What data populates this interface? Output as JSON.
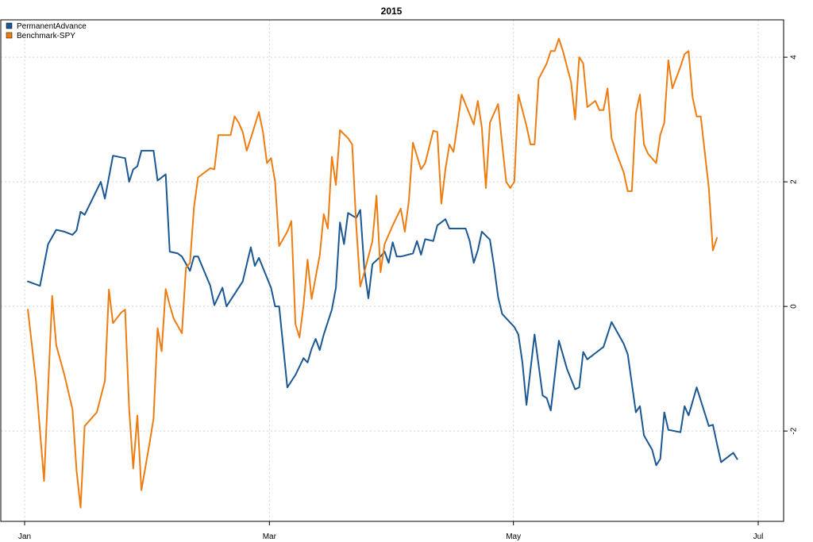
{
  "chart_data": {
    "type": "line",
    "title": "2015",
    "xlabel": "",
    "ylabel": "",
    "x_ticks": [
      "Jan",
      "Mar",
      "May",
      "Jul"
    ],
    "y_ticks": [
      -2,
      0,
      2,
      4
    ],
    "xlim": [
      0,
      180
    ],
    "ylim": [
      -3.45,
      4.6
    ],
    "grid": true,
    "legend_position": "top-left",
    "y_axis_side": "right",
    "series": [
      {
        "name": "PermanentAdvance",
        "color": "#1b5792",
        "points": [
          [
            1,
            0.4
          ],
          [
            4,
            0.33
          ],
          [
            6,
            1.0
          ],
          [
            8,
            1.23
          ],
          [
            10,
            1.2
          ],
          [
            12,
            1.15
          ],
          [
            13,
            1.22
          ],
          [
            14,
            1.52
          ],
          [
            15,
            1.47
          ],
          [
            19,
            2.0
          ],
          [
            20,
            1.73
          ],
          [
            22,
            2.42
          ],
          [
            25,
            2.38
          ],
          [
            26,
            2.0
          ],
          [
            27,
            2.2
          ],
          [
            28,
            2.25
          ],
          [
            29,
            2.5
          ],
          [
            32,
            2.5
          ],
          [
            33,
            2.02
          ],
          [
            35,
            2.12
          ],
          [
            36,
            0.88
          ],
          [
            38,
            0.85
          ],
          [
            39,
            0.8
          ],
          [
            41,
            0.57
          ],
          [
            42,
            0.8
          ],
          [
            43,
            0.8
          ],
          [
            46,
            0.33
          ],
          [
            47,
            0.02
          ],
          [
            49,
            0.3
          ],
          [
            50,
            0.0
          ],
          [
            54,
            0.4
          ],
          [
            56,
            0.95
          ],
          [
            57,
            0.65
          ],
          [
            58,
            0.78
          ],
          [
            61,
            0.3
          ],
          [
            62,
            0.0
          ],
          [
            63,
            0.0
          ],
          [
            65,
            -1.3
          ],
          [
            67,
            -1.1
          ],
          [
            69,
            -0.83
          ],
          [
            70,
            -0.9
          ],
          [
            71,
            -0.68
          ],
          [
            72,
            -0.52
          ],
          [
            73,
            -0.7
          ],
          [
            74,
            -0.45
          ],
          [
            75,
            -0.25
          ],
          [
            76,
            -0.05
          ],
          [
            77,
            0.3
          ],
          [
            78,
            1.35
          ],
          [
            79,
            1.0
          ],
          [
            80,
            1.5
          ],
          [
            82,
            1.42
          ],
          [
            83,
            1.55
          ],
          [
            84,
            0.6
          ],
          [
            85,
            0.13
          ],
          [
            86,
            0.68
          ],
          [
            88,
            0.8
          ],
          [
            89,
            0.88
          ],
          [
            90,
            0.7
          ],
          [
            91,
            1.03
          ],
          [
            92,
            0.8
          ],
          [
            93,
            0.8
          ],
          [
            96,
            0.85
          ],
          [
            97,
            1.05
          ],
          [
            98,
            0.83
          ],
          [
            99,
            1.08
          ],
          [
            101,
            1.05
          ],
          [
            102,
            1.3
          ],
          [
            104,
            1.4
          ],
          [
            105,
            1.25
          ],
          [
            109,
            1.25
          ],
          [
            110,
            1.05
          ],
          [
            111,
            0.7
          ],
          [
            112,
            0.9
          ],
          [
            113,
            1.2
          ],
          [
            115,
            1.07
          ],
          [
            116,
            0.65
          ],
          [
            117,
            0.15
          ],
          [
            118,
            -0.12
          ],
          [
            121,
            -0.33
          ],
          [
            122,
            -0.45
          ],
          [
            123,
            -0.9
          ],
          [
            124,
            -1.58
          ],
          [
            126,
            -0.45
          ],
          [
            128,
            -1.43
          ],
          [
            129,
            -1.47
          ],
          [
            130,
            -1.67
          ],
          [
            132,
            -0.55
          ],
          [
            134,
            -1.0
          ],
          [
            136,
            -1.33
          ],
          [
            137,
            -1.3
          ],
          [
            138,
            -0.73
          ],
          [
            139,
            -0.85
          ],
          [
            141,
            -0.75
          ],
          [
            143,
            -0.65
          ],
          [
            145,
            -0.25
          ],
          [
            148,
            -0.6
          ],
          [
            149,
            -0.77
          ],
          [
            151,
            -1.7
          ],
          [
            152,
            -1.6
          ],
          [
            153,
            -2.07
          ],
          [
            155,
            -2.3
          ],
          [
            156,
            -2.55
          ],
          [
            157,
            -2.45
          ],
          [
            158,
            -1.7
          ],
          [
            159,
            -1.98
          ],
          [
            162,
            -2.02
          ],
          [
            163,
            -1.6
          ],
          [
            164,
            -1.75
          ],
          [
            166,
            -1.3
          ],
          [
            169,
            -1.92
          ],
          [
            170,
            -1.9
          ],
          [
            171,
            -2.2
          ],
          [
            172,
            -2.5
          ],
          [
            174,
            -2.4
          ],
          [
            175,
            -2.35
          ],
          [
            176,
            -2.45
          ]
        ]
      },
      {
        "name": "Benchmark-SPY",
        "color": "#ee7d11",
        "points": [
          [
            1,
            -0.05
          ],
          [
            3,
            -1.2
          ],
          [
            4,
            -2.0
          ],
          [
            5,
            -2.8
          ],
          [
            7,
            0.17
          ],
          [
            8,
            -0.62
          ],
          [
            10,
            -1.1
          ],
          [
            12,
            -1.65
          ],
          [
            13,
            -2.63
          ],
          [
            14,
            -3.23
          ],
          [
            15,
            -1.92
          ],
          [
            18,
            -1.7
          ],
          [
            20,
            -1.2
          ],
          [
            21,
            0.27
          ],
          [
            22,
            -0.27
          ],
          [
            24,
            -0.1
          ],
          [
            25,
            -0.05
          ],
          [
            26,
            -1.65
          ],
          [
            27,
            -2.6
          ],
          [
            28,
            -1.75
          ],
          [
            29,
            -2.95
          ],
          [
            31,
            -2.2
          ],
          [
            32,
            -1.8
          ],
          [
            33,
            -0.35
          ],
          [
            34,
            -0.72
          ],
          [
            35,
            0.28
          ],
          [
            36,
            0.02
          ],
          [
            37,
            -0.2
          ],
          [
            39,
            -0.43
          ],
          [
            40,
            0.62
          ],
          [
            41,
            0.7
          ],
          [
            42,
            1.6
          ],
          [
            43,
            2.07
          ],
          [
            46,
            2.22
          ],
          [
            47,
            2.2
          ],
          [
            48,
            2.75
          ],
          [
            51,
            2.75
          ],
          [
            52,
            3.05
          ],
          [
            53,
            2.95
          ],
          [
            54,
            2.8
          ],
          [
            55,
            2.5
          ],
          [
            56,
            2.7
          ],
          [
            58,
            3.12
          ],
          [
            59,
            2.8
          ],
          [
            60,
            2.3
          ],
          [
            61,
            2.38
          ],
          [
            62,
            2.0
          ],
          [
            63,
            0.97
          ],
          [
            65,
            1.2
          ],
          [
            66,
            1.37
          ],
          [
            67,
            -0.28
          ],
          [
            68,
            -0.5
          ],
          [
            69,
            0.02
          ],
          [
            70,
            0.75
          ],
          [
            71,
            0.12
          ],
          [
            73,
            0.82
          ],
          [
            74,
            1.48
          ],
          [
            75,
            1.25
          ],
          [
            76,
            2.4
          ],
          [
            77,
            1.95
          ],
          [
            78,
            2.83
          ],
          [
            80,
            2.7
          ],
          [
            81,
            2.6
          ],
          [
            82,
            1.3
          ],
          [
            83,
            0.32
          ],
          [
            84,
            0.55
          ],
          [
            86,
            1.05
          ],
          [
            87,
            1.78
          ],
          [
            88,
            0.55
          ],
          [
            89,
            1.0
          ],
          [
            91,
            1.3
          ],
          [
            93,
            1.57
          ],
          [
            94,
            1.2
          ],
          [
            95,
            1.7
          ],
          [
            96,
            2.63
          ],
          [
            98,
            2.2
          ],
          [
            99,
            2.3
          ],
          [
            101,
            2.82
          ],
          [
            102,
            2.8
          ],
          [
            103,
            1.65
          ],
          [
            104,
            2.2
          ],
          [
            105,
            2.6
          ],
          [
            106,
            2.48
          ],
          [
            107,
            2.93
          ],
          [
            108,
            3.4
          ],
          [
            110,
            3.08
          ],
          [
            111,
            2.92
          ],
          [
            112,
            3.3
          ],
          [
            113,
            2.87
          ],
          [
            114,
            1.9
          ],
          [
            115,
            2.95
          ],
          [
            117,
            3.25
          ],
          [
            118,
            2.6
          ],
          [
            119,
            2.0
          ],
          [
            120,
            1.9
          ],
          [
            121,
            2.0
          ],
          [
            122,
            3.4
          ],
          [
            124,
            2.9
          ],
          [
            125,
            2.6
          ],
          [
            126,
            2.6
          ],
          [
            127,
            3.65
          ],
          [
            129,
            3.9
          ],
          [
            130,
            4.1
          ],
          [
            131,
            4.1
          ],
          [
            132,
            4.3
          ],
          [
            133,
            4.1
          ],
          [
            135,
            3.6
          ],
          [
            136,
            3.0
          ],
          [
            137,
            4.0
          ],
          [
            138,
            3.9
          ],
          [
            139,
            3.2
          ],
          [
            141,
            3.3
          ],
          [
            142,
            3.15
          ],
          [
            143,
            3.15
          ],
          [
            144,
            3.5
          ],
          [
            145,
            2.7
          ],
          [
            146,
            2.5
          ],
          [
            148,
            2.15
          ],
          [
            149,
            1.85
          ],
          [
            150,
            1.85
          ],
          [
            151,
            3.1
          ],
          [
            152,
            3.4
          ],
          [
            153,
            2.6
          ],
          [
            154,
            2.45
          ],
          [
            156,
            2.3
          ],
          [
            157,
            2.75
          ],
          [
            158,
            2.95
          ],
          [
            159,
            3.95
          ],
          [
            160,
            3.5
          ],
          [
            162,
            3.85
          ],
          [
            163,
            4.05
          ],
          [
            164,
            4.1
          ],
          [
            165,
            3.35
          ],
          [
            166,
            3.05
          ],
          [
            167,
            3.05
          ],
          [
            169,
            1.9
          ],
          [
            170,
            0.9
          ],
          [
            171,
            1.1
          ]
        ]
      }
    ]
  }
}
